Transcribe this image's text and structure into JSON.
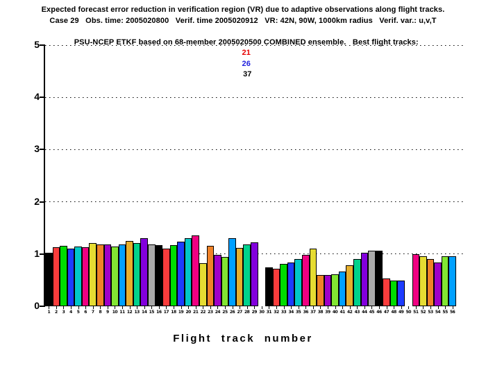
{
  "chart_data": {
    "type": "bar",
    "title_lines": [
      "Expected forecast error reduction in verification region (VR) due to adaptive observations along flight tracks.",
      "Case 29   Obs. time: 2005020800   Verif. time 2005020912   VR: 42N, 90W, 1000km radius   Verif. var.: u,v,T"
    ],
    "title_line3_prefix": "PSU-NCEP ETKF based on 68-member 2005020500 COMBINED ensemble.   Best flight tracks:",
    "best_tracks": [
      {
        "label": "21",
        "color": "#e60000"
      },
      {
        "label": "26",
        "color": "#2020dd"
      },
      {
        "label": "37",
        "color": "#000000"
      }
    ],
    "xlabel": "Flight track number",
    "ylabel": "",
    "ylim": [
      0,
      5
    ],
    "yticks": [
      "0",
      "1",
      "2",
      "3",
      "4",
      "5"
    ],
    "grid": {
      "style": "dotted",
      "values": [
        1,
        2,
        3,
        4,
        5
      ],
      "color": "#000000"
    },
    "categories": [
      "1",
      "2",
      "3",
      "4",
      "5",
      "6",
      "7",
      "8",
      "9",
      "10",
      "11",
      "12",
      "13",
      "14",
      "15",
      "16",
      "17",
      "18",
      "19",
      "20",
      "21",
      "22",
      "23",
      "24",
      "25",
      "26",
      "27",
      "28",
      "29",
      "30",
      "31",
      "32",
      "33",
      "34",
      "35",
      "36",
      "37",
      "38",
      "39",
      "40",
      "41",
      "42",
      "43",
      "44",
      "45",
      "46",
      "47",
      "48",
      "49",
      "50",
      "51",
      "52",
      "53",
      "54",
      "55",
      "56"
    ],
    "values": [
      1.03,
      1.13,
      1.16,
      1.1,
      1.14,
      1.13,
      1.21,
      1.18,
      1.19,
      1.15,
      1.18,
      1.25,
      1.21,
      1.31,
      1.18,
      1.17,
      1.11,
      1.17,
      1.24,
      1.3,
      1.36,
      0.83,
      1.16,
      0.98,
      0.95,
      1.31,
      1.12,
      1.19,
      1.23,
      0.0,
      0.74,
      0.72,
      0.81,
      0.84,
      0.91,
      0.98,
      1.11,
      0.6,
      0.6,
      0.61,
      0.67,
      0.78,
      0.9,
      1.02,
      1.06,
      1.07,
      0.53,
      0.49,
      0.49,
      0.0,
      1.0,
      0.96,
      0.91,
      0.84,
      0.96,
      0.96
    ],
    "palette_cycle": [
      "#000000",
      "#fa3c3c",
      "#00dc00",
      "#1e3cff",
      "#00c8c8",
      "#f00082",
      "#e6dc32",
      "#f08228",
      "#a000c8",
      "#82e632",
      "#00a0ff",
      "#e6af2d",
      "#00d28c",
      "#8200dc",
      "#aaaaaa"
    ],
    "axis_color": "#000000",
    "legend": "none"
  }
}
